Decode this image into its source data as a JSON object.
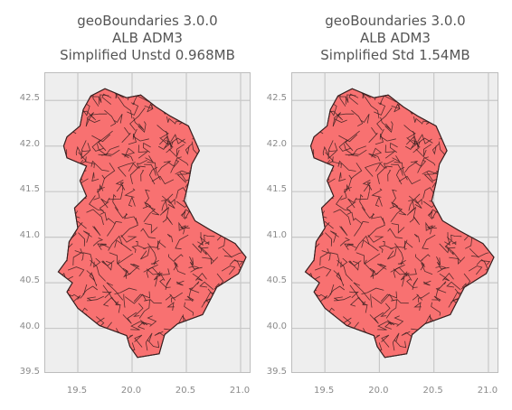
{
  "panels": [
    {
      "title_lines": [
        "geoBoundaries 3.0.0",
        "ALB ADM3",
        "Simplified Unstd 0.968MB"
      ],
      "map": {
        "country": "ALB",
        "level": "ADM3",
        "variant": "unstd"
      }
    },
    {
      "title_lines": [
        "geoBoundaries 3.0.0",
        "ALB ADM3",
        "Simplified Std 1.54MB"
      ],
      "map": {
        "country": "ALB",
        "level": "ADM3",
        "variant": "std"
      }
    }
  ],
  "axes": {
    "x_ticks": [
      "19.5",
      "20.0",
      "20.5",
      "21.0"
    ],
    "y_ticks": [
      "42.5",
      "42.0",
      "41.5",
      "41.0",
      "40.5",
      "40.0",
      "39.5"
    ],
    "x_range": [
      19.2,
      21.1
    ],
    "y_range": [
      39.5,
      42.8
    ]
  },
  "style": {
    "fill": "#f87171",
    "edge": "#3a2020",
    "grid": "#c8c8c8",
    "bg": "#eeeeee"
  }
}
